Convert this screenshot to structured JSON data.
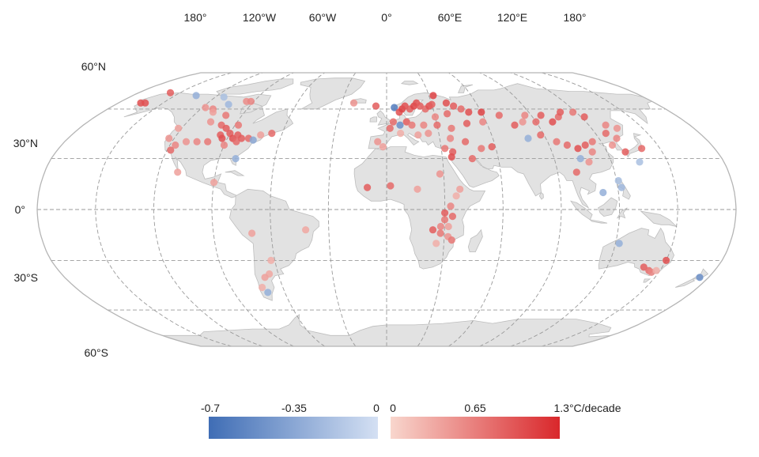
{
  "map": {
    "projection": "Robinson",
    "graticule": "dashed",
    "lon_labels": [
      "180°",
      "120°W",
      "60°W",
      "0°",
      "60°E",
      "120°E",
      "180°"
    ],
    "lat_labels": [
      "60°N",
      "30°N",
      "0°",
      "30°S",
      "60°S"
    ],
    "colors": {
      "land": "#e2e2e2",
      "negative_low": "#3f6db5",
      "negative_high": "#d4e0f3",
      "positive_low": "#f8d6cd",
      "positive_high": "#d9272b"
    },
    "stations": [
      {
        "lon": -165,
        "lat": 64,
        "v": 1.0
      },
      {
        "lon": -162,
        "lat": 64,
        "v": 1.0
      },
      {
        "lon": -157,
        "lat": 71,
        "v": 0.9
      },
      {
        "lon": -135,
        "lat": 69,
        "v": -0.3
      },
      {
        "lon": -114,
        "lat": 68,
        "v": -0.2
      },
      {
        "lon": -105,
        "lat": 63,
        "v": -0.25
      },
      {
        "lon": -118,
        "lat": 61,
        "v": 0.5
      },
      {
        "lon": -112,
        "lat": 60,
        "v": 0.6
      },
      {
        "lon": -110,
        "lat": 58,
        "v": 0.4
      },
      {
        "lon": -95,
        "lat": 65,
        "v": 0.55
      },
      {
        "lon": -92,
        "lat": 65,
        "v": 0.6
      },
      {
        "lon": -100,
        "lat": 56,
        "v": 0.7
      },
      {
        "lon": -106,
        "lat": 52,
        "v": 0.5
      },
      {
        "lon": -98,
        "lat": 50,
        "v": 0.8
      },
      {
        "lon": -94,
        "lat": 48,
        "v": 0.9
      },
      {
        "lon": -88,
        "lat": 50,
        "v": 0.7
      },
      {
        "lon": -122,
        "lat": 48,
        "v": 0.4
      },
      {
        "lon": -123,
        "lat": 42,
        "v": 0.5
      },
      {
        "lon": -117,
        "lat": 38,
        "v": 0.6
      },
      {
        "lon": -112,
        "lat": 40,
        "v": 0.5
      },
      {
        "lon": -106,
        "lat": 40,
        "v": 0.6
      },
      {
        "lon": -100,
        "lat": 40,
        "v": 0.7
      },
      {
        "lon": -95,
        "lat": 44,
        "v": 0.9
      },
      {
        "lon": -93,
        "lat": 42,
        "v": 1.0
      },
      {
        "lon": -90,
        "lat": 45,
        "v": 0.9
      },
      {
        "lon": -87,
        "lat": 42,
        "v": 1.0
      },
      {
        "lon": -85,
        "lat": 44,
        "v": 0.9
      },
      {
        "lon": -84,
        "lat": 40,
        "v": 0.8
      },
      {
        "lon": -82,
        "lat": 42,
        "v": 0.9
      },
      {
        "lon": -78,
        "lat": 42,
        "v": 0.8
      },
      {
        "lon": -75,
        "lat": 41,
        "v": -0.35
      },
      {
        "lon": -72,
        "lat": 44,
        "v": 0.4
      },
      {
        "lon": -66,
        "lat": 45,
        "v": 0.8
      },
      {
        "lon": -90,
        "lat": 38,
        "v": 0.6
      },
      {
        "lon": -81,
        "lat": 30,
        "v": -0.3
      },
      {
        "lon": -118,
        "lat": 35,
        "v": 0.8
      },
      {
        "lon": -110,
        "lat": 22,
        "v": 0.4
      },
      {
        "lon": -90,
        "lat": 16,
        "v": 0.4
      },
      {
        "lon": -70,
        "lat": -14,
        "v": 0.4
      },
      {
        "lon": -42,
        "lat": -12,
        "v": 0.35
      },
      {
        "lon": -62,
        "lat": -30,
        "v": 0.3
      },
      {
        "lon": -65,
        "lat": -38,
        "v": 0.35
      },
      {
        "lon": -68,
        "lat": -40,
        "v": 0.4
      },
      {
        "lon": -70,
        "lat": -49,
        "v": -0.3
      },
      {
        "lon": -72,
        "lat": -46,
        "v": 0.3
      },
      {
        "lon": -22,
        "lat": 64,
        "v": 0.5
      },
      {
        "lon": -7,
        "lat": 62,
        "v": 0.9
      },
      {
        "lon": 5,
        "lat": 61,
        "v": -0.6
      },
      {
        "lon": 8,
        "lat": 58,
        "v": 1.0
      },
      {
        "lon": 10,
        "lat": 60,
        "v": 1.1
      },
      {
        "lon": 12,
        "lat": 62,
        "v": 1.0
      },
      {
        "lon": 15,
        "lat": 60,
        "v": 0.9
      },
      {
        "lon": 18,
        "lat": 62,
        "v": 1.1
      },
      {
        "lon": 20,
        "lat": 64,
        "v": 1.0
      },
      {
        "lon": 22,
        "lat": 62,
        "v": 0.9
      },
      {
        "lon": 25,
        "lat": 60,
        "v": 0.8
      },
      {
        "lon": 28,
        "lat": 62,
        "v": 1.0
      },
      {
        "lon": 30,
        "lat": 63,
        "v": 0.9
      },
      {
        "lon": 33,
        "lat": 69,
        "v": 1.1
      },
      {
        "lon": 40,
        "lat": 64,
        "v": 1.0
      },
      {
        "lon": 44,
        "lat": 62,
        "v": 0.9
      },
      {
        "lon": 48,
        "lat": 60,
        "v": 0.8
      },
      {
        "lon": 52,
        "lat": 58,
        "v": 1.0
      },
      {
        "lon": 38,
        "lat": 57,
        "v": 0.8
      },
      {
        "lon": 30,
        "lat": 55,
        "v": 0.6
      },
      {
        "lon": 60,
        "lat": 58,
        "v": 1.1
      },
      {
        "lon": 12,
        "lat": 52,
        "v": 0.9
      },
      {
        "lon": 8,
        "lat": 50,
        "v": -0.5
      },
      {
        "lon": 4,
        "lat": 52,
        "v": 0.8
      },
      {
        "lon": 2,
        "lat": 48,
        "v": 0.8
      },
      {
        "lon": 15,
        "lat": 50,
        "v": 0.7
      },
      {
        "lon": 22,
        "lat": 50,
        "v": 0.6
      },
      {
        "lon": 30,
        "lat": 50,
        "v": 0.8
      },
      {
        "lon": 38,
        "lat": 48,
        "v": 0.7
      },
      {
        "lon": 48,
        "lat": 51,
        "v": 0.9
      },
      {
        "lon": 58,
        "lat": 52,
        "v": 0.6
      },
      {
        "lon": 24,
        "lat": 45,
        "v": 0.5
      },
      {
        "lon": 18,
        "lat": 44,
        "v": 0.4
      },
      {
        "lon": 8,
        "lat": 45,
        "v": 0.3
      },
      {
        "lon": -5,
        "lat": 40,
        "v": 0.5
      },
      {
        "lon": -2,
        "lat": 37,
        "v": 0.4
      },
      {
        "lon": 36,
        "lat": 42,
        "v": 0.6
      },
      {
        "lon": 44,
        "lat": 40,
        "v": 0.8
      },
      {
        "lon": 52,
        "lat": 36,
        "v": 0.7
      },
      {
        "lon": 58,
        "lat": 37,
        "v": 0.9
      },
      {
        "lon": 32,
        "lat": 36,
        "v": 0.7
      },
      {
        "lon": 36,
        "lat": 34,
        "v": 0.9
      },
      {
        "lon": 35,
        "lat": 31,
        "v": 1.0
      },
      {
        "lon": 46,
        "lat": 30,
        "v": 0.8
      },
      {
        "lon": 70,
        "lat": 56,
        "v": 0.8
      },
      {
        "lon": 76,
        "lat": 50,
        "v": 0.9
      },
      {
        "lon": 82,
        "lat": 52,
        "v": 0.5
      },
      {
        "lon": 86,
        "lat": 56,
        "v": 0.6
      },
      {
        "lon": 90,
        "lat": 52,
        "v": 0.8
      },
      {
        "lon": 96,
        "lat": 56,
        "v": 0.9
      },
      {
        "lon": 100,
        "lat": 52,
        "v": 1.0
      },
      {
        "lon": 106,
        "lat": 55,
        "v": 0.8
      },
      {
        "lon": 110,
        "lat": 58,
        "v": 0.9
      },
      {
        "lon": 118,
        "lat": 58,
        "v": 0.7
      },
      {
        "lon": 122,
        "lat": 55,
        "v": 0.9
      },
      {
        "lon": 130,
        "lat": 50,
        "v": 0.6
      },
      {
        "lon": 135,
        "lat": 48,
        "v": 0.5
      },
      {
        "lon": 80,
        "lat": 42,
        "v": -0.3
      },
      {
        "lon": 88,
        "lat": 44,
        "v": 0.8
      },
      {
        "lon": 95,
        "lat": 40,
        "v": 0.7
      },
      {
        "lon": 100,
        "lat": 38,
        "v": 0.8
      },
      {
        "lon": 105,
        "lat": 36,
        "v": 1.0
      },
      {
        "lon": 110,
        "lat": 38,
        "v": 0.9
      },
      {
        "lon": 115,
        "lat": 40,
        "v": 0.7
      },
      {
        "lon": 112,
        "lat": 34,
        "v": 0.6
      },
      {
        "lon": 104,
        "lat": 30,
        "v": -0.3
      },
      {
        "lon": 108,
        "lat": 28,
        "v": 0.5
      },
      {
        "lon": 100,
        "lat": 22,
        "v": 0.8
      },
      {
        "lon": 126,
        "lat": 45,
        "v": 0.8
      },
      {
        "lon": 130,
        "lat": 42,
        "v": 0.6
      },
      {
        "lon": 125,
        "lat": 38,
        "v": 0.5
      },
      {
        "lon": 130,
        "lat": 34,
        "v": 0.9
      },
      {
        "lon": 135,
        "lat": 28,
        "v": -0.2
      },
      {
        "lon": 140,
        "lat": 36,
        "v": 0.8
      },
      {
        "lon": 121,
        "lat": 17,
        "v": -0.2
      },
      {
        "lon": 122,
        "lat": 13,
        "v": -0.25
      },
      {
        "lon": 112,
        "lat": 10,
        "v": -0.3
      },
      {
        "lon": -10,
        "lat": 13,
        "v": 0.9
      },
      {
        "lon": 2,
        "lat": 14,
        "v": 0.8
      },
      {
        "lon": 16,
        "lat": 12,
        "v": 0.4
      },
      {
        "lon": 28,
        "lat": 21,
        "v": 0.5
      },
      {
        "lon": 38,
        "lat": 12,
        "v": 0.4
      },
      {
        "lon": 36,
        "lat": 8,
        "v": 0.3
      },
      {
        "lon": 33,
        "lat": 2,
        "v": 0.6
      },
      {
        "lon": 30,
        "lat": -2,
        "v": 0.9
      },
      {
        "lon": 34,
        "lat": -4,
        "v": 0.8
      },
      {
        "lon": 30,
        "lat": -6,
        "v": 0.7
      },
      {
        "lon": 28,
        "lat": -10,
        "v": 0.6
      },
      {
        "lon": 32,
        "lat": -10,
        "v": 0.4
      },
      {
        "lon": 24,
        "lat": -12,
        "v": 0.9
      },
      {
        "lon": 28,
        "lat": -14,
        "v": 0.7
      },
      {
        "lon": 32,
        "lat": -16,
        "v": 0.5
      },
      {
        "lon": 34,
        "lat": -18,
        "v": 0.7
      },
      {
        "lon": 26,
        "lat": -20,
        "v": 0.3
      },
      {
        "lon": 122,
        "lat": -20,
        "v": -0.3
      },
      {
        "lon": 150,
        "lat": -30,
        "v": 1.0
      },
      {
        "lon": 140,
        "lat": -34,
        "v": 0.9
      },
      {
        "lon": 144,
        "lat": -36,
        "v": 0.8
      },
      {
        "lon": 146,
        "lat": -37,
        "v": 0.6
      },
      {
        "lon": 148,
        "lat": -36,
        "v": 0.3
      },
      {
        "lon": 175,
        "lat": -40,
        "v": -0.5
      }
    ]
  },
  "legend": {
    "negative_ticks": [
      "-0.7",
      "-0.35",
      "0"
    ],
    "positive_ticks": [
      "0",
      "0.65",
      "1.3°C/decade"
    ]
  }
}
